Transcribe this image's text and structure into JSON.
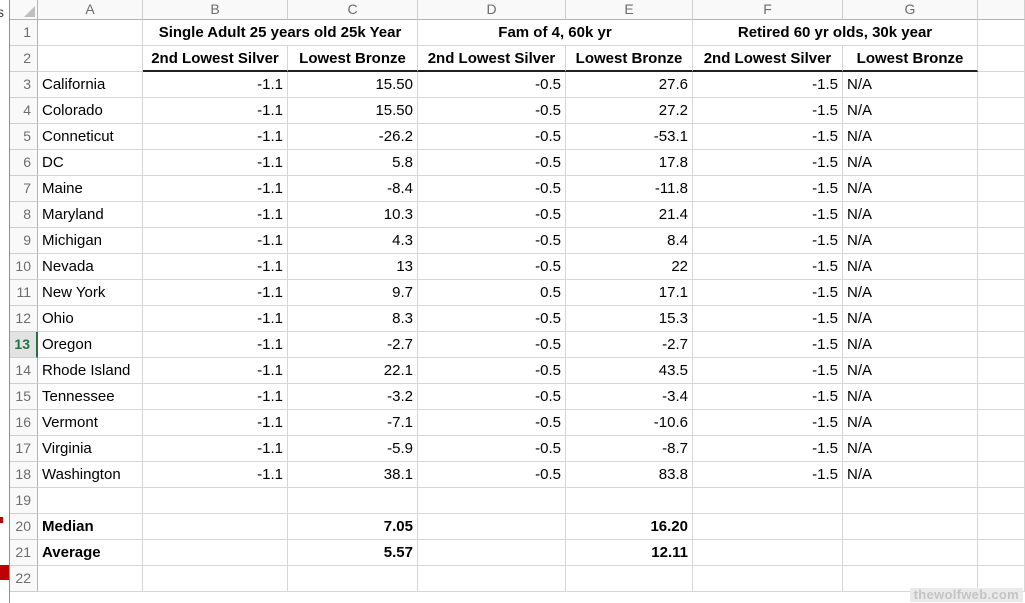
{
  "sheet": {
    "column_letters": [
      "A",
      "B",
      "C",
      "D",
      "E",
      "F",
      "G"
    ],
    "row1_merged": [
      {
        "label": "Single Adult 25 years old 25k Year"
      },
      {
        "label": "Fam of 4, 60k yr"
      },
      {
        "label": "Retired 60 yr olds, 30k year"
      }
    ],
    "row2_subheaders": [
      "2nd Lowest Silver",
      "Lowest Bronze",
      "2nd Lowest Silver",
      "Lowest Bronze",
      "2nd Lowest Silver",
      "Lowest Bronze"
    ],
    "data_rows": [
      {
        "row": 3,
        "state": "California",
        "values": [
          "-1.1",
          "15.50",
          "-0.5",
          "27.6",
          "-1.5",
          "N/A"
        ]
      },
      {
        "row": 4,
        "state": "Colorado",
        "values": [
          "-1.1",
          "15.50",
          "-0.5",
          "27.2",
          "-1.5",
          "N/A"
        ]
      },
      {
        "row": 5,
        "state": "Conneticut",
        "values": [
          "-1.1",
          "-26.2",
          "-0.5",
          "-53.1",
          "-1.5",
          "N/A"
        ]
      },
      {
        "row": 6,
        "state": "DC",
        "values": [
          "-1.1",
          "5.8",
          "-0.5",
          "17.8",
          "-1.5",
          "N/A"
        ]
      },
      {
        "row": 7,
        "state": "Maine",
        "values": [
          "-1.1",
          "-8.4",
          "-0.5",
          "-11.8",
          "-1.5",
          "N/A"
        ]
      },
      {
        "row": 8,
        "state": "Maryland",
        "values": [
          "-1.1",
          "10.3",
          "-0.5",
          "21.4",
          "-1.5",
          "N/A"
        ]
      },
      {
        "row": 9,
        "state": "Michigan",
        "values": [
          "-1.1",
          "4.3",
          "-0.5",
          "8.4",
          "-1.5",
          "N/A"
        ]
      },
      {
        "row": 10,
        "state": "Nevada",
        "values": [
          "-1.1",
          "13",
          "-0.5",
          "22",
          "-1.5",
          "N/A"
        ]
      },
      {
        "row": 11,
        "state": "New York",
        "values": [
          "-1.1",
          "9.7",
          "0.5",
          "17.1",
          "-1.5",
          "N/A"
        ]
      },
      {
        "row": 12,
        "state": "Ohio",
        "values": [
          "-1.1",
          "8.3",
          "-0.5",
          "15.3",
          "-1.5",
          "N/A"
        ]
      },
      {
        "row": 13,
        "state": "Oregon",
        "values": [
          "-1.1",
          "-2.7",
          "-0.5",
          "-2.7",
          "-1.5",
          "N/A"
        ]
      },
      {
        "row": 14,
        "state": "Rhode Island",
        "values": [
          "-1.1",
          "22.1",
          "-0.5",
          "43.5",
          "-1.5",
          "N/A"
        ]
      },
      {
        "row": 15,
        "state": "Tennessee",
        "values": [
          "-1.1",
          "-3.2",
          "-0.5",
          "-3.4",
          "-1.5",
          "N/A"
        ]
      },
      {
        "row": 16,
        "state": "Vermont",
        "values": [
          "-1.1",
          "-7.1",
          "-0.5",
          "-10.6",
          "-1.5",
          "N/A"
        ]
      },
      {
        "row": 17,
        "state": "Virginia",
        "values": [
          "-1.1",
          "-5.9",
          "-0.5",
          "-8.7",
          "-1.5",
          "N/A"
        ]
      },
      {
        "row": 18,
        "state": "Washington",
        "values": [
          "-1.1",
          "38.1",
          "-0.5",
          "83.8",
          "-1.5",
          "N/A"
        ]
      }
    ],
    "summary_rows": [
      {
        "row": 20,
        "label": "Median",
        "c": "7.05",
        "e": "16.20"
      },
      {
        "row": 21,
        "label": "Average",
        "c": "5.57",
        "e": "12.11"
      }
    ],
    "empty_rows": [
      19,
      22
    ],
    "active_row": 13,
    "accent_green": "#217346"
  },
  "left_strip": {
    "fragment": "s"
  },
  "watermark": {
    "text": "thewolfweb.com"
  }
}
